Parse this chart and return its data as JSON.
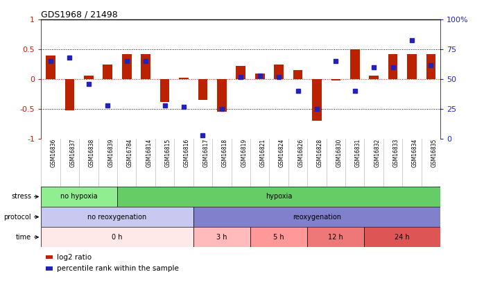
{
  "title": "GDS1968 / 21498",
  "samples": [
    "GSM16836",
    "GSM16837",
    "GSM16838",
    "GSM16839",
    "GSM16784",
    "GSM16814",
    "GSM16815",
    "GSM16816",
    "GSM16817",
    "GSM16818",
    "GSM16819",
    "GSM16821",
    "GSM16824",
    "GSM16826",
    "GSM16828",
    "GSM16830",
    "GSM16831",
    "GSM16832",
    "GSM16833",
    "GSM16834",
    "GSM16835"
  ],
  "log2_ratio": [
    0.4,
    -0.52,
    0.06,
    0.25,
    0.42,
    0.42,
    -0.38,
    0.02,
    -0.35,
    -0.55,
    0.22,
    0.1,
    0.25,
    0.15,
    -0.7,
    -0.02,
    0.5,
    0.06,
    0.42,
    0.42,
    0.42
  ],
  "percentile": [
    65,
    68,
    46,
    28,
    65,
    65,
    28,
    27,
    3,
    25,
    52,
    53,
    52,
    40,
    25,
    65,
    40,
    60,
    60,
    83,
    62
  ],
  "stress_groups": [
    {
      "label": "no hypoxia",
      "start": 0,
      "end": 4,
      "color": "#90EE90"
    },
    {
      "label": "hypoxia",
      "start": 4,
      "end": 21,
      "color": "#66CC66"
    }
  ],
  "protocol_groups": [
    {
      "label": "no reoxygenation",
      "start": 0,
      "end": 8,
      "color": "#C8C8F0"
    },
    {
      "label": "reoxygenation",
      "start": 8,
      "end": 21,
      "color": "#8080CC"
    }
  ],
  "time_groups": [
    {
      "label": "0 h",
      "start": 0,
      "end": 8,
      "color": "#FFE8E8"
    },
    {
      "label": "3 h",
      "start": 8,
      "end": 11,
      "color": "#FFBBBB"
    },
    {
      "label": "5 h",
      "start": 11,
      "end": 14,
      "color": "#FF9999"
    },
    {
      "label": "12 h",
      "start": 14,
      "end": 17,
      "color": "#EE7777"
    },
    {
      "label": "24 h",
      "start": 17,
      "end": 21,
      "color": "#DD5555"
    }
  ],
  "bar_color": "#BB2200",
  "dot_color": "#2222BB",
  "bg_color": "#FFFFFF",
  "ylim_left": [
    -1.0,
    1.0
  ],
  "ylim_right": [
    0,
    100
  ],
  "dotted_lines": [
    0.5,
    0.0,
    -0.5
  ],
  "yticks_left": [
    1,
    0.5,
    0,
    -0.5,
    -1
  ],
  "ytick_labels_left": [
    "1",
    "0.5",
    "0",
    "-0.5",
    "-1"
  ],
  "yticks_right": [
    100,
    75,
    50,
    25,
    0
  ],
  "ytick_labels_right": [
    "100%",
    "75",
    "50",
    "25",
    "0"
  ]
}
